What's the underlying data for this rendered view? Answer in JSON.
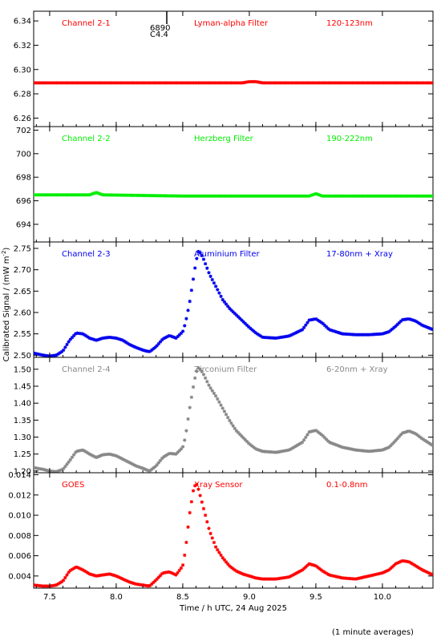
{
  "figure": {
    "xlabel": "Time / h UTC, 24 Aug 2025",
    "ylabel": "Calibrated Signal / (mW m",
    "ylabel_sup": "-2",
    "ylabel_close": ")",
    "note": "(1 minute averages)",
    "xlim": [
      7.38,
      10.38
    ],
    "xticks": [
      "7.5",
      "8.0",
      "8.5",
      "9.0",
      "9.5",
      "10.0"
    ],
    "event_marker": {
      "x": 8.38,
      "label1": "6890",
      "label2": "C4.4"
    }
  },
  "chart_data": [
    {
      "type": "scatter",
      "panel_label": "Channel 2-1",
      "filter": "Lyman-alpha Filter",
      "band": "120-123nm",
      "color": "#ff0000",
      "ylim": [
        6.253,
        6.348
      ],
      "yticks": [
        "6.26",
        "6.28",
        "6.30",
        "6.32",
        "6.34"
      ],
      "x": [
        7.4,
        7.75,
        8.0,
        8.5,
        8.95,
        9.0,
        9.05,
        9.1,
        9.5,
        10.0,
        10.38
      ],
      "y": [
        6.289,
        6.289,
        6.289,
        6.289,
        6.289,
        6.29,
        6.29,
        6.289,
        6.289,
        6.289,
        6.289
      ]
    },
    {
      "type": "scatter",
      "panel_label": "Channel 2-2",
      "filter": "Herzberg Filter",
      "band": "190-222nm",
      "color": "#00ee00",
      "ylim": [
        692.5,
        702.3
      ],
      "yticks": [
        "694",
        "696",
        "698",
        "700",
        "702"
      ],
      "x": [
        7.4,
        7.8,
        7.85,
        7.9,
        8.5,
        9.0,
        9.45,
        9.5,
        9.55,
        10.0,
        10.38
      ],
      "y": [
        696.5,
        696.5,
        696.7,
        696.5,
        696.4,
        696.4,
        696.4,
        696.6,
        696.4,
        696.4,
        696.4
      ]
    },
    {
      "type": "scatter",
      "panel_label": "Channel 2-3",
      "filter": "Aluminium Filter",
      "band": "17-80nm + Xray",
      "color": "#0000ee",
      "ylim": [
        2.495,
        2.765
      ],
      "yticks": [
        "2.50",
        "2.55",
        "2.60",
        "2.65",
        "2.70",
        "2.75"
      ],
      "x": [
        7.38,
        7.45,
        7.5,
        7.55,
        7.6,
        7.65,
        7.7,
        7.75,
        7.8,
        7.85,
        7.9,
        7.95,
        8.0,
        8.05,
        8.1,
        8.15,
        8.2,
        8.25,
        8.3,
        8.35,
        8.4,
        8.45,
        8.5,
        8.52,
        8.55,
        8.58,
        8.6,
        8.62,
        8.65,
        8.7,
        8.75,
        8.8,
        8.85,
        8.9,
        8.95,
        9.0,
        9.05,
        9.1,
        9.2,
        9.3,
        9.4,
        9.45,
        9.5,
        9.55,
        9.6,
        9.7,
        9.8,
        9.9,
        10.0,
        10.05,
        10.1,
        10.15,
        10.2,
        10.25,
        10.3,
        10.38
      ],
      "y": [
        2.505,
        2.5,
        2.498,
        2.5,
        2.51,
        2.535,
        2.552,
        2.55,
        2.54,
        2.535,
        2.54,
        2.542,
        2.54,
        2.535,
        2.525,
        2.518,
        2.512,
        2.508,
        2.52,
        2.538,
        2.546,
        2.54,
        2.555,
        2.575,
        2.62,
        2.68,
        2.72,
        2.745,
        2.73,
        2.69,
        2.66,
        2.63,
        2.61,
        2.595,
        2.58,
        2.565,
        2.552,
        2.542,
        2.54,
        2.545,
        2.56,
        2.582,
        2.585,
        2.575,
        2.56,
        2.55,
        2.548,
        2.548,
        2.55,
        2.555,
        2.568,
        2.583,
        2.585,
        2.58,
        2.57,
        2.56
      ]
    },
    {
      "type": "scatter",
      "panel_label": "Channel 2-4",
      "filter": "Zirconium Filter",
      "band": "6-20nm + Xray",
      "color": "#888888",
      "ylim": [
        1.195,
        1.535
      ],
      "yticks": [
        "1.20",
        "1.25",
        "1.30",
        "1.35",
        "1.40",
        "1.45",
        "1.50"
      ],
      "x": [
        7.38,
        7.45,
        7.5,
        7.55,
        7.6,
        7.65,
        7.7,
        7.75,
        7.8,
        7.85,
        7.9,
        7.95,
        8.0,
        8.05,
        8.1,
        8.15,
        8.2,
        8.25,
        8.3,
        8.35,
        8.4,
        8.45,
        8.5,
        8.52,
        8.55,
        8.58,
        8.6,
        8.62,
        8.65,
        8.7,
        8.75,
        8.8,
        8.85,
        8.9,
        8.95,
        9.0,
        9.05,
        9.1,
        9.2,
        9.3,
        9.4,
        9.45,
        9.5,
        9.55,
        9.6,
        9.7,
        9.8,
        9.9,
        10.0,
        10.05,
        10.1,
        10.15,
        10.2,
        10.25,
        10.3,
        10.38
      ],
      "y": [
        1.21,
        1.205,
        1.2,
        1.198,
        1.205,
        1.23,
        1.258,
        1.262,
        1.25,
        1.24,
        1.248,
        1.25,
        1.245,
        1.235,
        1.225,
        1.215,
        1.208,
        1.2,
        1.215,
        1.24,
        1.252,
        1.25,
        1.27,
        1.3,
        1.38,
        1.45,
        1.49,
        1.505,
        1.49,
        1.45,
        1.42,
        1.385,
        1.35,
        1.32,
        1.3,
        1.28,
        1.265,
        1.258,
        1.255,
        1.262,
        1.285,
        1.315,
        1.32,
        1.305,
        1.285,
        1.27,
        1.262,
        1.258,
        1.262,
        1.27,
        1.29,
        1.312,
        1.318,
        1.31,
        1.295,
        1.275
      ]
    },
    {
      "type": "scatter",
      "panel_label": "GOES",
      "filter": "Xray Sensor",
      "band": "0.1-0.8nm",
      "color": "#ff0000",
      "ylim": [
        0.0028,
        0.0142
      ],
      "yticks": [
        "0.004",
        "0.006",
        "0.008",
        "0.010",
        "0.012",
        "0.014"
      ],
      "x": [
        7.38,
        7.45,
        7.5,
        7.55,
        7.6,
        7.65,
        7.7,
        7.75,
        7.8,
        7.85,
        7.9,
        7.95,
        8.0,
        8.05,
        8.1,
        8.15,
        8.2,
        8.25,
        8.3,
        8.35,
        8.4,
        8.45,
        8.5,
        8.52,
        8.55,
        8.58,
        8.6,
        8.62,
        8.65,
        8.7,
        8.75,
        8.8,
        8.85,
        8.9,
        8.95,
        9.0,
        9.05,
        9.1,
        9.2,
        9.3,
        9.4,
        9.45,
        9.5,
        9.55,
        9.6,
        9.7,
        9.8,
        9.9,
        10.0,
        10.05,
        10.1,
        10.15,
        10.2,
        10.25,
        10.3,
        10.38
      ],
      "y": [
        0.0031,
        0.003,
        0.003,
        0.0031,
        0.0035,
        0.0045,
        0.0049,
        0.0046,
        0.0042,
        0.004,
        0.0041,
        0.0042,
        0.004,
        0.0037,
        0.0034,
        0.0032,
        0.0031,
        0.003,
        0.0036,
        0.0043,
        0.0044,
        0.0041,
        0.005,
        0.0065,
        0.01,
        0.0125,
        0.0132,
        0.0125,
        0.011,
        0.0085,
        0.0068,
        0.0058,
        0.005,
        0.0045,
        0.0042,
        0.004,
        0.0038,
        0.0037,
        0.0037,
        0.0039,
        0.0046,
        0.0052,
        0.005,
        0.0045,
        0.0041,
        0.0038,
        0.0037,
        0.004,
        0.0043,
        0.0046,
        0.0052,
        0.0055,
        0.0054,
        0.005,
        0.0046,
        0.0041
      ]
    }
  ]
}
